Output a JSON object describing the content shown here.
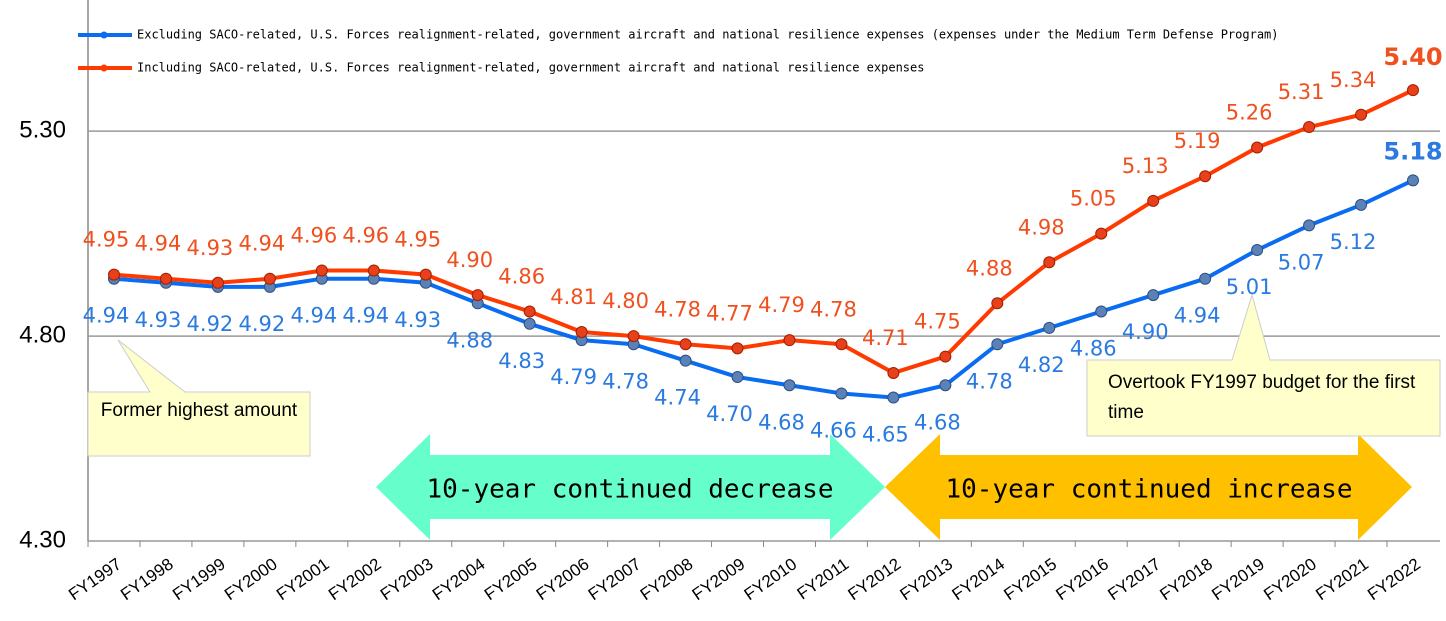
{
  "chart_data": {
    "type": "line",
    "categories": [
      "FY1997",
      "FY1998",
      "FY1999",
      "FY2000",
      "FY2001",
      "FY2002",
      "FY2003",
      "FY2004",
      "FY2005",
      "FY2006",
      "FY2007",
      "FY2008",
      "FY2009",
      "FY2010",
      "FY2011",
      "FY2012",
      "FY2013",
      "FY2014",
      "FY2015",
      "FY2016",
      "FY2017",
      "FY2018",
      "FY2019",
      "FY2020",
      "FY2021",
      "FY2022"
    ],
    "series": [
      {
        "name": "Excluding SACO-related, U.S. Forces realignment-related, government aircraft and national resilience expenses (expenses under the Medium Term Defense Program)",
        "color": "#0a6cf0",
        "values": [
          4.94,
          4.93,
          4.92,
          4.92,
          4.94,
          4.94,
          4.93,
          4.88,
          4.83,
          4.79,
          4.78,
          4.74,
          4.7,
          4.68,
          4.66,
          4.65,
          4.68,
          4.78,
          4.82,
          4.86,
          4.9,
          4.94,
          5.01,
          5.07,
          5.12,
          5.18
        ],
        "value_labels": [
          "4.94",
          "4.93",
          "4.92",
          "4.92",
          "4.94",
          "4.94",
          "4.93",
          "4.88",
          "4.83",
          "4.79",
          "4.78",
          "4.74",
          "4.70",
          "4.68",
          "4.66",
          "4.65",
          "4.68",
          "4.78",
          "4.82",
          "4.86",
          "4.90",
          "4.94",
          "5.01",
          "5.07",
          "5.12",
          "5.18"
        ]
      },
      {
        "name": "Including SACO-related, U.S. Forces realignment-related, government aircraft and national resilience expenses",
        "color": "#ff3a00",
        "values": [
          4.95,
          4.94,
          4.93,
          4.94,
          4.96,
          4.96,
          4.95,
          4.9,
          4.86,
          4.81,
          4.8,
          4.78,
          4.77,
          4.79,
          4.78,
          4.71,
          4.75,
          4.88,
          4.98,
          5.05,
          5.13,
          5.19,
          5.26,
          5.31,
          5.34,
          5.4
        ],
        "value_labels": [
          "4.95",
          "4.94",
          "4.93",
          "4.94",
          "4.96",
          "4.96",
          "4.95",
          "4.90",
          "4.86",
          "4.81",
          "4.80",
          "4.78",
          "4.77",
          "4.79",
          "4.78",
          "4.71",
          "4.75",
          "4.88",
          "4.98",
          "5.05",
          "5.13",
          "5.19",
          "5.26",
          "5.31",
          "5.34",
          "5.40"
        ]
      }
    ],
    "ylim": [
      4.3,
      5.62
    ],
    "yticks": [
      {
        "value": 4.3,
        "label": "4.30"
      },
      {
        "value": 4.8,
        "label": "4.80"
      },
      {
        "value": 5.3,
        "label": "5.30"
      }
    ],
    "grid": true,
    "annotations": [
      "Former highest amount",
      "Overtook FY1997 budget for the first time",
      "10-year continued decrease",
      "10-year continued increase"
    ]
  }
}
